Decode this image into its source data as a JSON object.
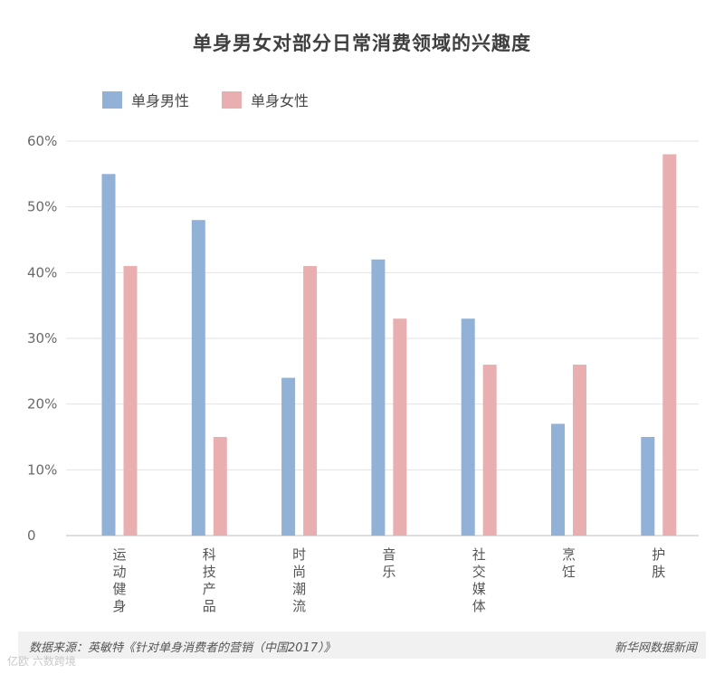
{
  "chart_data": {
    "type": "bar",
    "title": "单身男女对部分日常消费领域的兴趣度",
    "categories": [
      "运动健身",
      "科技产品",
      "时尚潮流",
      "音乐",
      "社交媒体",
      "烹饪",
      "护肤"
    ],
    "series": [
      {
        "name": "单身男性",
        "values": [
          55,
          48,
          24,
          42,
          33,
          17,
          15
        ],
        "color": "#92b1d6"
      },
      {
        "name": "单身女性",
        "values": [
          41,
          15,
          41,
          33,
          26,
          26,
          58
        ],
        "color": "#e8aeb0"
      }
    ],
    "yticks": [
      "0",
      "10%",
      "20%",
      "30%",
      "40%",
      "50%",
      "60%"
    ],
    "ylim": [
      0,
      60
    ],
    "grid": true,
    "legend_position": "top-left"
  },
  "footer": {
    "source": "数据来源：英敏特《针对单身消费者的营销（中国2017）》",
    "credit": "新华网数据新闻"
  },
  "watermark": "亿欧 六数跨境"
}
